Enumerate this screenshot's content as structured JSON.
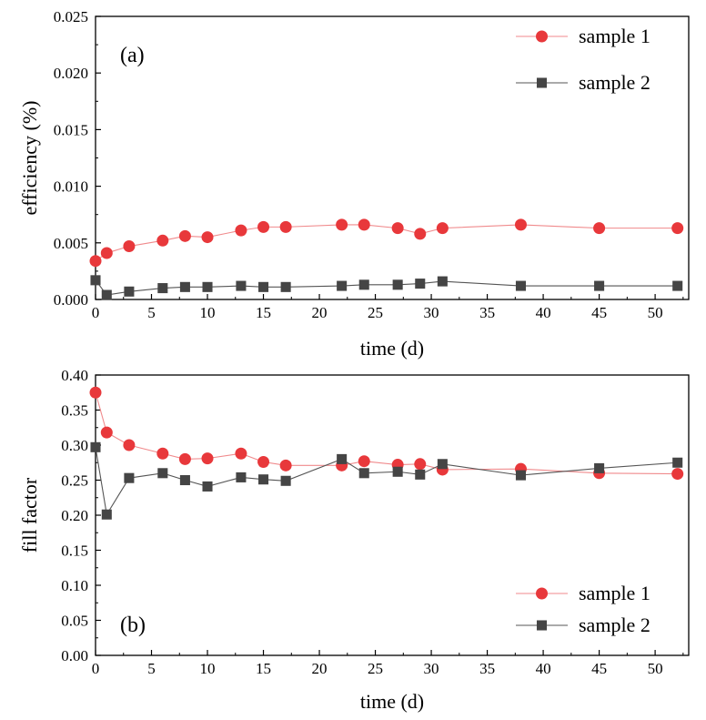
{
  "colors": {
    "series1": "#e8383b",
    "series1_line": "#f08a8c",
    "series2": "#454545",
    "series2_line": "#555555",
    "axis": "#000000"
  },
  "chart_data": [
    {
      "type": "line",
      "panel_label": "(a)",
      "xlabel": "time (d)",
      "ylabel": "efficiency (%)",
      "xlim": [
        0,
        53
      ],
      "ylim": [
        0,
        0.025
      ],
      "xticks": [
        0,
        5,
        10,
        15,
        20,
        25,
        30,
        35,
        40,
        45,
        50
      ],
      "xtick_labels": [
        "0",
        "5",
        "10",
        "15",
        "20",
        "25",
        "30",
        "35",
        "40",
        "45",
        "50"
      ],
      "yticks": [
        0,
        0.005,
        0.01,
        0.015,
        0.02,
        0.025
      ],
      "ytick_labels": [
        "0.000",
        "0.005",
        "0.010",
        "0.015",
        "0.020",
        "0.025"
      ],
      "legend_position": "top-right",
      "series": [
        {
          "name": "sample 1",
          "marker": "circle",
          "x": [
            0,
            1,
            3,
            6,
            8,
            10,
            13,
            15,
            17,
            22,
            24,
            27,
            29,
            31,
            38,
            45,
            52
          ],
          "values": [
            0.0034,
            0.0041,
            0.0047,
            0.0052,
            0.0056,
            0.0055,
            0.0061,
            0.0064,
            0.0064,
            0.0066,
            0.0066,
            0.0063,
            0.0058,
            0.0063,
            0.0066,
            0.0063,
            0.0063
          ]
        },
        {
          "name": "sample 2",
          "marker": "square",
          "x": [
            0,
            1,
            3,
            6,
            8,
            10,
            13,
            15,
            17,
            22,
            24,
            27,
            29,
            31,
            38,
            45,
            52
          ],
          "values": [
            0.0017,
            0.0004,
            0.0007,
            0.001,
            0.0011,
            0.0011,
            0.0012,
            0.0011,
            0.0011,
            0.0012,
            0.0013,
            0.0013,
            0.0014,
            0.0016,
            0.0012,
            0.0012,
            0.0012
          ]
        }
      ]
    },
    {
      "type": "line",
      "panel_label": "(b)",
      "xlabel": "time (d)",
      "ylabel": "fill factor",
      "xlim": [
        0,
        53
      ],
      "ylim": [
        0,
        0.4
      ],
      "xticks": [
        0,
        5,
        10,
        15,
        20,
        25,
        30,
        35,
        40,
        45,
        50
      ],
      "xtick_labels": [
        "0",
        "5",
        "10",
        "15",
        "20",
        "25",
        "30",
        "35",
        "40",
        "45",
        "50"
      ],
      "yticks": [
        0,
        0.05,
        0.1,
        0.15,
        0.2,
        0.25,
        0.3,
        0.35,
        0.4
      ],
      "ytick_labels": [
        "0.00",
        "0.05",
        "0.10",
        "0.15",
        "0.20",
        "0.25",
        "0.30",
        "0.35",
        "0.40"
      ],
      "legend_position": "bottom-right",
      "series": [
        {
          "name": "sample 1",
          "marker": "circle",
          "x": [
            0,
            1,
            3,
            6,
            8,
            10,
            13,
            15,
            17,
            22,
            24,
            27,
            29,
            31,
            38,
            45,
            52
          ],
          "values": [
            0.375,
            0.318,
            0.3,
            0.288,
            0.28,
            0.281,
            0.288,
            0.276,
            0.271,
            0.271,
            0.277,
            0.272,
            0.273,
            0.265,
            0.266,
            0.26,
            0.259
          ]
        },
        {
          "name": "sample 2",
          "marker": "square",
          "x": [
            0,
            1,
            3,
            6,
            8,
            10,
            13,
            15,
            17,
            22,
            24,
            27,
            29,
            31,
            38,
            45,
            52
          ],
          "values": [
            0.297,
            0.201,
            0.253,
            0.26,
            0.25,
            0.241,
            0.254,
            0.251,
            0.249,
            0.28,
            0.26,
            0.262,
            0.258,
            0.273,
            0.257,
            0.267,
            0.275
          ]
        }
      ]
    }
  ]
}
